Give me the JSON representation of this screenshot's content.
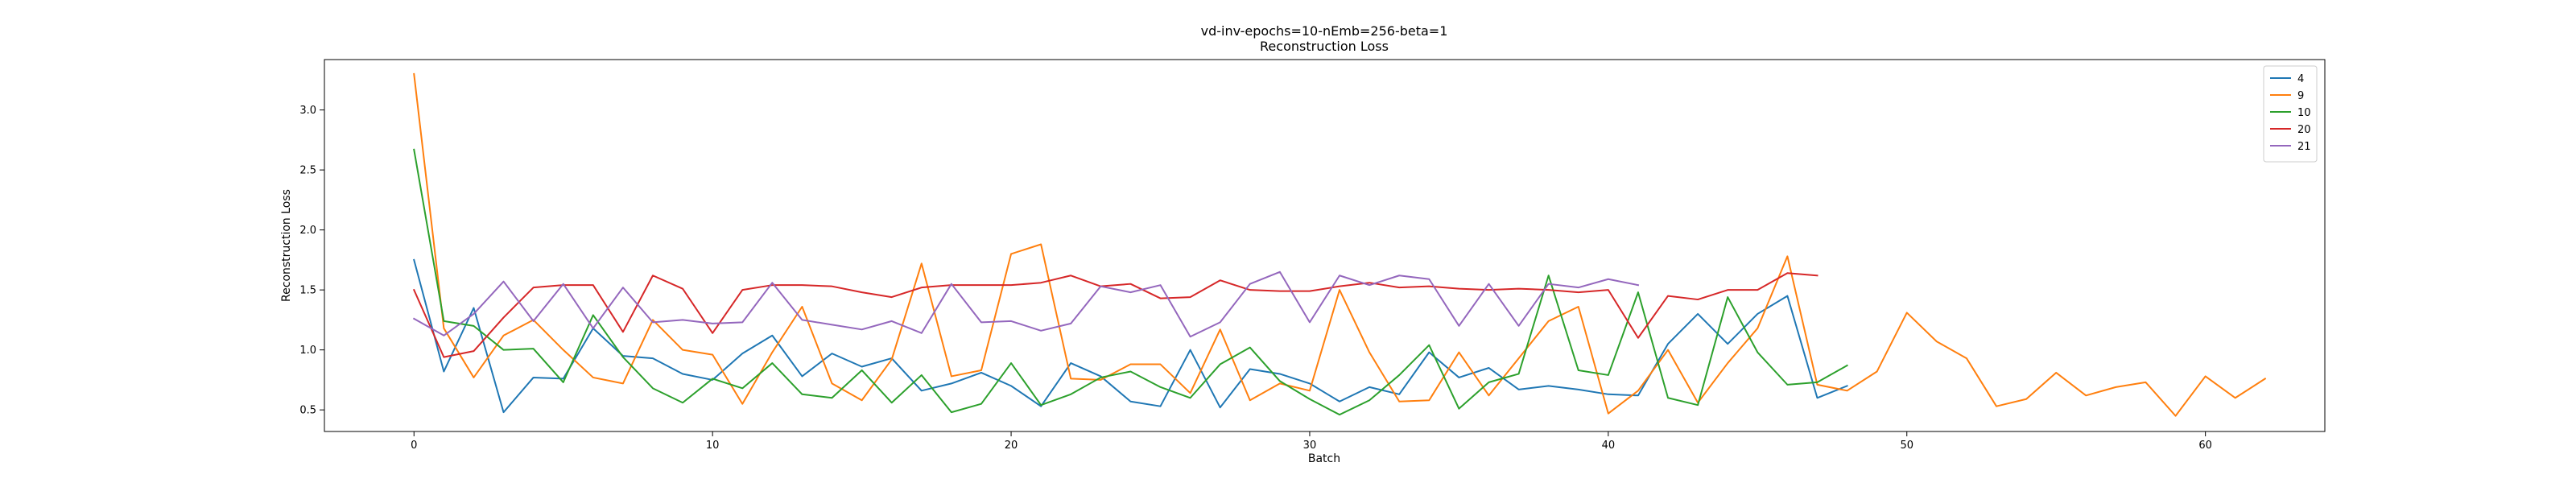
{
  "chart_data": {
    "type": "line",
    "title": "vd-inv-epochs=10-nEmb=256-beta=1",
    "subtitle": "Reconstruction Loss",
    "xlabel": "Batch",
    "ylabel": "Reconstruction Loss",
    "xlim": [
      -3,
      64
    ],
    "ylim": [
      0.32,
      3.42
    ],
    "xticks": [
      0,
      10,
      20,
      30,
      40,
      50,
      60
    ],
    "yticks": [
      0.5,
      1.0,
      1.5,
      2.0,
      2.5,
      3.0
    ],
    "ytick_labels": [
      "0.5",
      "1.0",
      "1.5",
      "2.0",
      "2.5",
      "3.0"
    ],
    "grid": false,
    "legend": "top-right",
    "series": [
      {
        "name": "4",
        "color": "#1f77b4",
        "values": [
          1.75,
          0.82,
          1.35,
          0.48,
          0.77,
          0.76,
          1.18,
          0.95,
          0.93,
          0.8,
          0.75,
          0.97,
          1.12,
          0.78,
          0.97,
          0.86,
          0.93,
          0.66,
          0.72,
          0.81,
          0.7,
          0.53,
          0.89,
          0.78,
          0.57,
          0.53,
          1.0,
          0.52,
          0.84,
          0.8,
          0.72,
          0.57,
          0.69,
          0.63,
          0.98,
          0.77,
          0.85,
          0.67,
          0.7,
          0.67,
          0.63,
          0.62,
          1.05,
          1.3,
          1.05,
          1.3,
          1.45,
          0.6,
          0.7
        ]
      },
      {
        "name": "9",
        "color": "#ff7f0e",
        "values": [
          3.3,
          1.18,
          0.77,
          1.12,
          1.25,
          1.0,
          0.77,
          0.72,
          1.25,
          1.0,
          0.96,
          0.55,
          0.98,
          1.36,
          0.72,
          0.58,
          0.92,
          1.72,
          0.78,
          0.83,
          1.8,
          1.88,
          0.76,
          0.75,
          0.88,
          0.88,
          0.64,
          1.17,
          0.58,
          0.72,
          0.66,
          1.5,
          0.98,
          0.57,
          0.58,
          0.98,
          0.62,
          0.93,
          1.24,
          1.36,
          0.47,
          0.66,
          1.0,
          0.56,
          0.89,
          1.18,
          1.78,
          0.71,
          0.66,
          0.82,
          1.31,
          1.07,
          0.93,
          0.53,
          0.59,
          0.81,
          0.62,
          0.69,
          0.73,
          0.45,
          0.78,
          0.6,
          0.76
        ]
      },
      {
        "name": "10",
        "color": "#2ca02c",
        "values": [
          2.67,
          1.24,
          1.2,
          1.0,
          1.01,
          0.73,
          1.29,
          0.94,
          0.68,
          0.56,
          0.76,
          0.68,
          0.89,
          0.63,
          0.6,
          0.83,
          0.56,
          0.79,
          0.48,
          0.55,
          0.89,
          0.54,
          0.63,
          0.77,
          0.82,
          0.69,
          0.6,
          0.88,
          1.02,
          0.74,
          0.59,
          0.46,
          0.58,
          0.79,
          1.04,
          0.51,
          0.73,
          0.8,
          1.62,
          0.83,
          0.79,
          1.48,
          0.6,
          0.54,
          1.44,
          0.98,
          0.71,
          0.73,
          0.87
        ]
      },
      {
        "name": "20",
        "color": "#d62728",
        "values": [
          1.5,
          0.94,
          0.99,
          1.27,
          1.52,
          1.54,
          1.54,
          1.15,
          1.62,
          1.51,
          1.14,
          1.5,
          1.54,
          1.54,
          1.53,
          1.48,
          1.44,
          1.52,
          1.54,
          1.54,
          1.54,
          1.56,
          1.62,
          1.53,
          1.55,
          1.43,
          1.44,
          1.58,
          1.5,
          1.49,
          1.49,
          1.53,
          1.56,
          1.52,
          1.53,
          1.51,
          1.5,
          1.51,
          1.5,
          1.48,
          1.5,
          1.1,
          1.45,
          1.42,
          1.5,
          1.5,
          1.64,
          1.62
        ]
      },
      {
        "name": "21",
        "color": "#9467bd",
        "values": [
          1.26,
          1.12,
          1.3,
          1.57,
          1.24,
          1.55,
          1.18,
          1.52,
          1.23,
          1.25,
          1.22,
          1.23,
          1.56,
          1.25,
          1.21,
          1.17,
          1.24,
          1.14,
          1.55,
          1.23,
          1.24,
          1.16,
          1.22,
          1.53,
          1.48,
          1.54,
          1.11,
          1.23,
          1.55,
          1.65,
          1.23,
          1.62,
          1.54,
          1.62,
          1.59,
          1.2,
          1.55,
          1.2,
          1.55,
          1.52,
          1.59,
          1.54
        ]
      }
    ]
  }
}
